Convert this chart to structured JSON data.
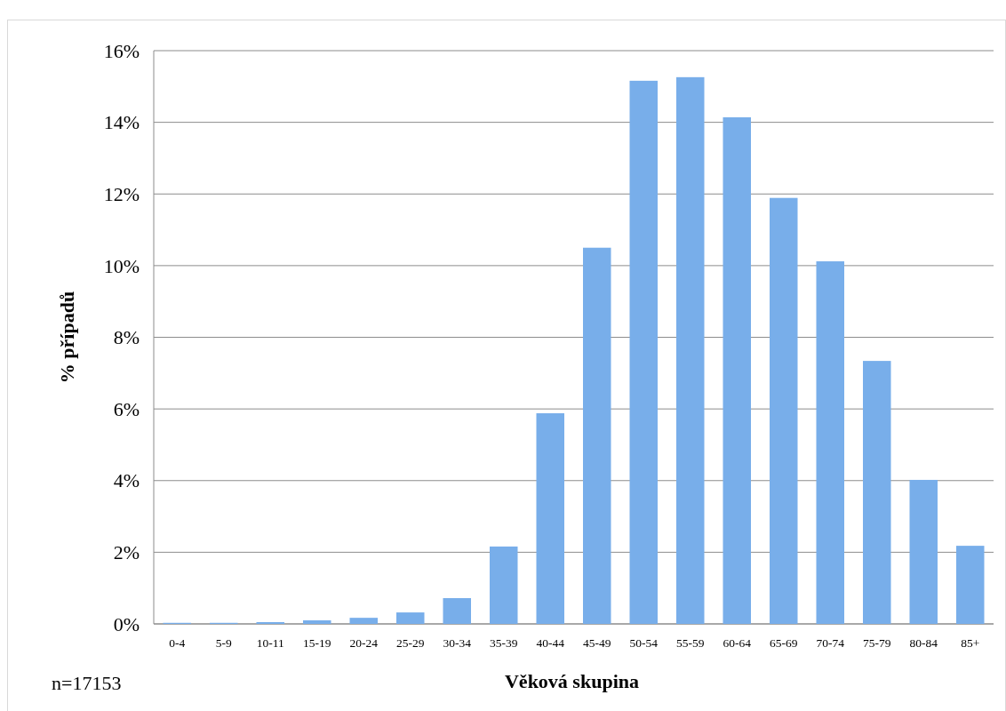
{
  "chart_data": {
    "type": "bar",
    "xlabel": "Věková skupina",
    "ylabel": "% případů",
    "categories": [
      "0-4",
      "5-9",
      "10-11",
      "15-19",
      "20-24",
      "25-29",
      "30-34",
      "35-39",
      "40-44",
      "45-49",
      "50-54",
      "55-59",
      "60-64",
      "65-69",
      "70-74",
      "75-79",
      "80-84",
      "85+"
    ],
    "values": [
      0.03,
      0.03,
      0.05,
      0.1,
      0.17,
      0.32,
      0.72,
      2.16,
      5.88,
      10.5,
      15.16,
      15.26,
      14.14,
      11.89,
      10.12,
      7.34,
      4.02,
      2.18
    ],
    "color": "#78aeea",
    "ylim": [
      0,
      16
    ],
    "yticks": [
      {
        "value": 0,
        "label": "0%"
      },
      {
        "value": 2,
        "label": "2%"
      },
      {
        "value": 4,
        "label": "4%"
      },
      {
        "value": 6,
        "label": "6%"
      },
      {
        "value": 8,
        "label": "8%"
      },
      {
        "value": 10,
        "label": "10%"
      },
      {
        "value": 12,
        "label": "12%"
      },
      {
        "value": 14,
        "label": "14%"
      },
      {
        "value": 16,
        "label": "16%"
      }
    ],
    "grid": "y",
    "annotations": [
      "n=17153"
    ]
  }
}
